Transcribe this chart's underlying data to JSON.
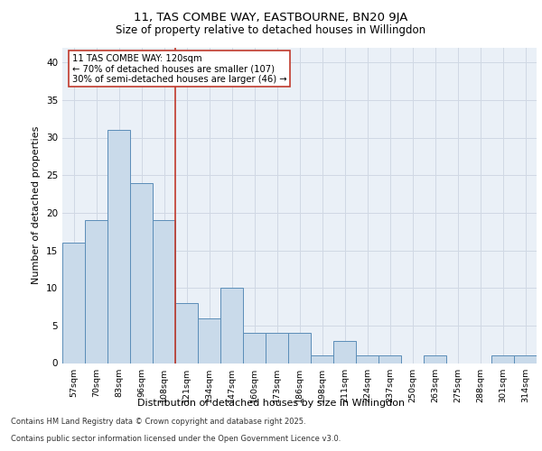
{
  "title1": "11, TAS COMBE WAY, EASTBOURNE, BN20 9JA",
  "title2": "Size of property relative to detached houses in Willingdon",
  "xlabel": "Distribution of detached houses by size in Willingdon",
  "ylabel": "Number of detached properties",
  "categories": [
    "57sqm",
    "70sqm",
    "83sqm",
    "96sqm",
    "108sqm",
    "121sqm",
    "134sqm",
    "147sqm",
    "160sqm",
    "173sqm",
    "186sqm",
    "198sqm",
    "211sqm",
    "224sqm",
    "237sqm",
    "250sqm",
    "263sqm",
    "275sqm",
    "288sqm",
    "301sqm",
    "314sqm"
  ],
  "values": [
    16,
    19,
    31,
    24,
    19,
    8,
    6,
    10,
    4,
    4,
    4,
    1,
    3,
    1,
    1,
    0,
    1,
    0,
    0,
    1,
    1
  ],
  "bar_color": "#c9daea",
  "bar_edge_color": "#5b8db8",
  "grid_color": "#d0d8e4",
  "background_color": "#eaf0f7",
  "vline_x": 4.5,
  "vline_color": "#c0392b",
  "annotation_text": "11 TAS COMBE WAY: 120sqm\n← 70% of detached houses are smaller (107)\n30% of semi-detached houses are larger (46) →",
  "annotation_box_color": "#ffffff",
  "annotation_box_edge": "#c0392b",
  "footer1": "Contains HM Land Registry data © Crown copyright and database right 2025.",
  "footer2": "Contains public sector information licensed under the Open Government Licence v3.0.",
  "ylim": [
    0,
    42
  ],
  "yticks": [
    0,
    5,
    10,
    15,
    20,
    25,
    30,
    35,
    40
  ]
}
